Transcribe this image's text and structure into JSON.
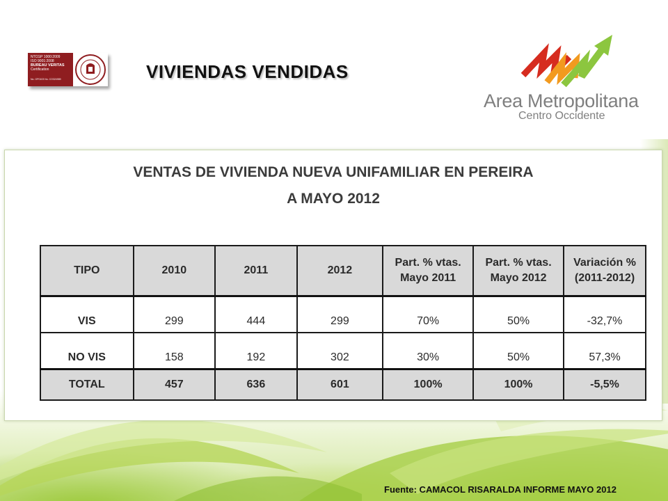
{
  "header": {
    "title": "VIVIENDAS  VENDIDAS"
  },
  "cert_badge": {
    "lines": [
      "NTCGP 1000:2009",
      "ISO    9001:2008",
      "BUREAU VERITAS",
      "Certification",
      "No. GP0103     No. CO324989"
    ],
    "seal_text": "BUREAU VERITAS 1828"
  },
  "logo": {
    "name": "Area Metropolitana",
    "subtitle": "Centro Occidente",
    "colors": {
      "red": "#d62c1f",
      "orange": "#f29a1f",
      "green": "#8cc63f",
      "gray": "#7f7f7f"
    }
  },
  "panel": {
    "title_line1": "VENTAS DE VIVIENDA NUEVA UNIFAMILIAR  EN PEREIRA",
    "title_line2": "A MAYO 2012"
  },
  "table": {
    "headers": [
      "TIPO",
      "2010",
      "2011",
      "2012",
      "Part. % vtas. Mayo 2011",
      "Part. % vtas. Mayo 2012",
      "Variación % (2011-2012)"
    ],
    "rows": [
      [
        "VIS",
        "299",
        "444",
        "299",
        "70%",
        "50%",
        "-32,7%"
      ],
      [
        "NO VIS",
        "158",
        "192",
        "302",
        "30%",
        "50%",
        "57,3%"
      ]
    ],
    "total": [
      "TOTAL",
      "457",
      "636",
      "601",
      "100%",
      "100%",
      "-5,5%"
    ]
  },
  "footer": {
    "source": "Fuente: CAMACOL RISARALDA INFORME MAYO 2012"
  }
}
